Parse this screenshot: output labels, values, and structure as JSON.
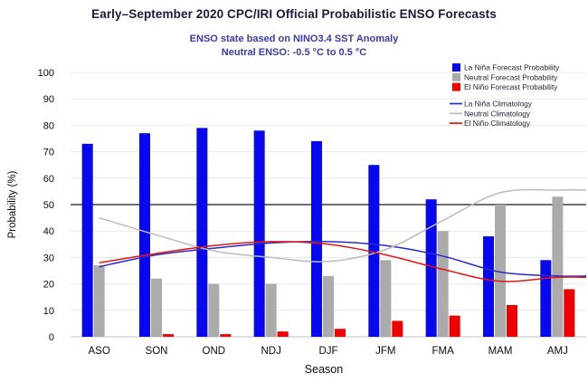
{
  "title": "Early–September 2020 CPC/IRI Official Probabilistic ENSO Forecasts",
  "subtitle1": "ENSO state based on NINO3.4 SST Anomaly",
  "subtitle2": "Neutral ENSO: -0.5 °C to 0.5 °C",
  "colors": {
    "background": "#ffffff",
    "title": "#1a1a3a",
    "subtitle": "#3a3aa8",
    "axis_text": "#0a0a0a",
    "legend_text": "#1f1f33",
    "grid": "#e8e8e8",
    "reference_line": "#3f3f3f",
    "baseline": "#c9cdd4"
  },
  "chart_data": {
    "type": "bar",
    "title": "Early–September 2020 CPC/IRI Official Probabilistic ENSO Forecasts",
    "xlabel": "Season",
    "ylabel": "Probability (%)",
    "ylim": [
      0,
      100
    ],
    "ytick_step": 10,
    "reference_line": 50,
    "grid": "horizontal",
    "legend_position": "top-right",
    "categories": [
      "ASO",
      "SON",
      "OND",
      "NDJ",
      "DJF",
      "JFM",
      "FMA",
      "MAM",
      "AMJ"
    ],
    "series": [
      {
        "name": "La Niña Forecast Probability",
        "type": "bar",
        "color": "#0808ee",
        "values": [
          73,
          77,
          79,
          78,
          74,
          65,
          52,
          38,
          29
        ]
      },
      {
        "name": "Neutral Forecast Probability",
        "type": "bar",
        "color": "#ababab",
        "values": [
          27,
          22,
          20,
          20,
          23,
          29,
          40,
          50,
          53
        ]
      },
      {
        "name": "El Niño Forecast Probability",
        "type": "bar",
        "color": "#ee0000",
        "values": [
          0,
          1,
          1,
          2,
          3,
          6,
          8,
          12,
          18
        ]
      },
      {
        "name": "La Niña Climatology",
        "type": "line",
        "color": "#2a2ac8",
        "values": [
          26.5,
          31,
          33.5,
          35.5,
          36,
          34.5,
          30.5,
          24.5,
          23
        ]
      },
      {
        "name": "Neutral Climatology",
        "type": "line",
        "color": "#bbbbbb",
        "values": [
          45,
          38.5,
          32.5,
          30,
          28.5,
          33,
          44,
          54.5,
          55.5
        ]
      },
      {
        "name": "El Niño Climatology",
        "type": "line",
        "color": "#e41414",
        "values": [
          28,
          31.5,
          34.5,
          36,
          35,
          31,
          25.5,
          21,
          22.5
        ]
      }
    ]
  }
}
